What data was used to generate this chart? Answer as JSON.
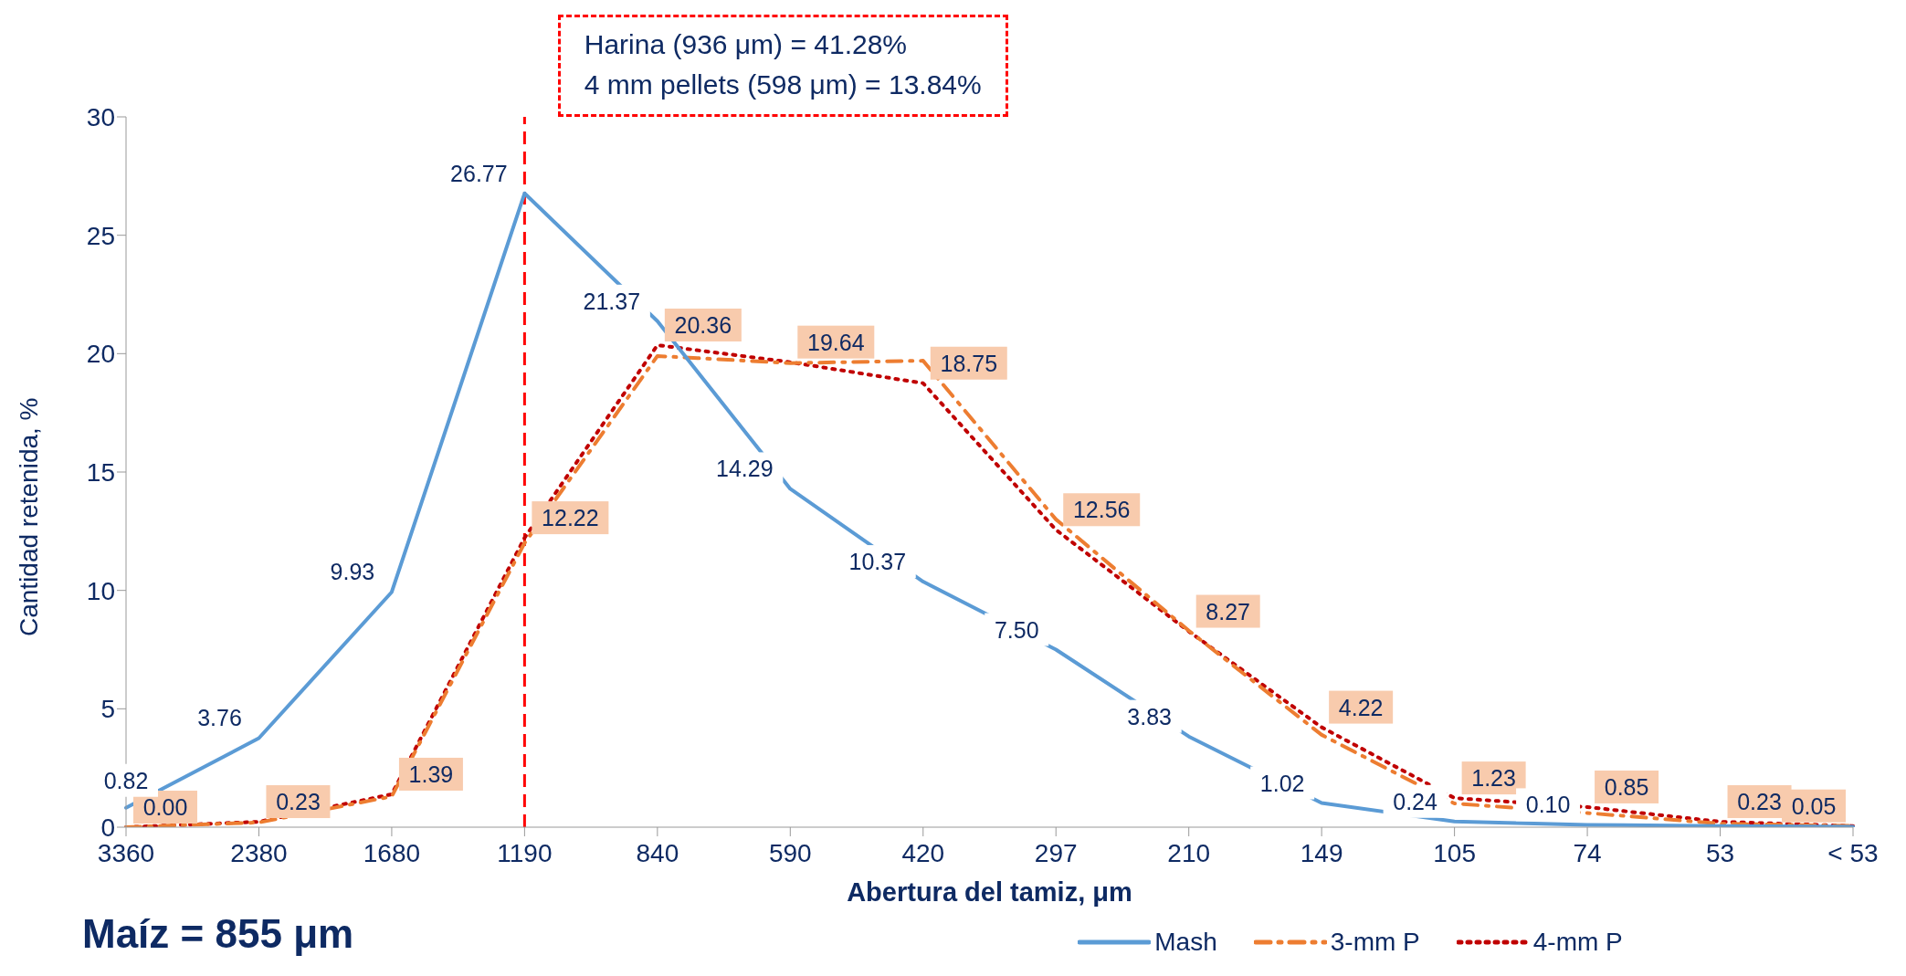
{
  "chart_data": {
    "type": "line",
    "xlabel": "Abertura del tamiz, μm",
    "ylabel": "Cantidad retenida, %",
    "categories": [
      "3360",
      "2380",
      "1680",
      "1190",
      "840",
      "590",
      "420",
      "297",
      "210",
      "149",
      "105",
      "74",
      "53",
      "< 53"
    ],
    "series": [
      {
        "name": "Mash",
        "color": "#5b9bd5",
        "line_style": "solid",
        "values": [
          0.82,
          3.76,
          9.93,
          26.77,
          21.37,
          14.29,
          10.37,
          7.5,
          3.83,
          1.02,
          0.24,
          0.1,
          0.05,
          0.02
        ],
        "value_labels": [
          "0.82",
          "3.76",
          "9.93",
          "26.77",
          "21.37",
          "14.29",
          "10.37",
          "7.50",
          "3.83",
          "1.02",
          "0.24",
          "0.10",
          null,
          null
        ]
      },
      {
        "name": "3-mm P",
        "color": "#ed7d31",
        "line_style": "dashed",
        "values": [
          0,
          0.2,
          1.3,
          12,
          19.9,
          19.6,
          19.7,
          13,
          8.3,
          3.9,
          1,
          0.6,
          0.15,
          0.05
        ]
      },
      {
        "name": "4-mm P",
        "color": "#c00000",
        "line_style": "dotted",
        "values": [
          0.0,
          0.23,
          1.39,
          12.22,
          20.36,
          19.64,
          18.75,
          12.56,
          8.27,
          4.22,
          1.23,
          0.85,
          0.23,
          0.05
        ],
        "value_labels": [
          "0.00",
          "0.23",
          "1.39",
          "12.22",
          "20.36",
          "19.64",
          "18.75",
          "12.56",
          "8.27",
          "4.22",
          "1.23",
          "0.85",
          "0.23",
          "0.05"
        ]
      }
    ],
    "ylim": [
      0,
      30
    ],
    "yticks": [
      0,
      5,
      10,
      15,
      20,
      25,
      30
    ],
    "grid": false,
    "legend": "bottom",
    "marker": "none",
    "ref_lines": [
      {
        "axis": "x",
        "value": "1190",
        "color": "#ff0000",
        "line_style": "dashed"
      }
    ],
    "annotations": [
      "Harina (936 μm) = 41.28%",
      "4 mm pellets (598 μm) = 13.84%",
      "Maíz = 855 μm"
    ]
  }
}
